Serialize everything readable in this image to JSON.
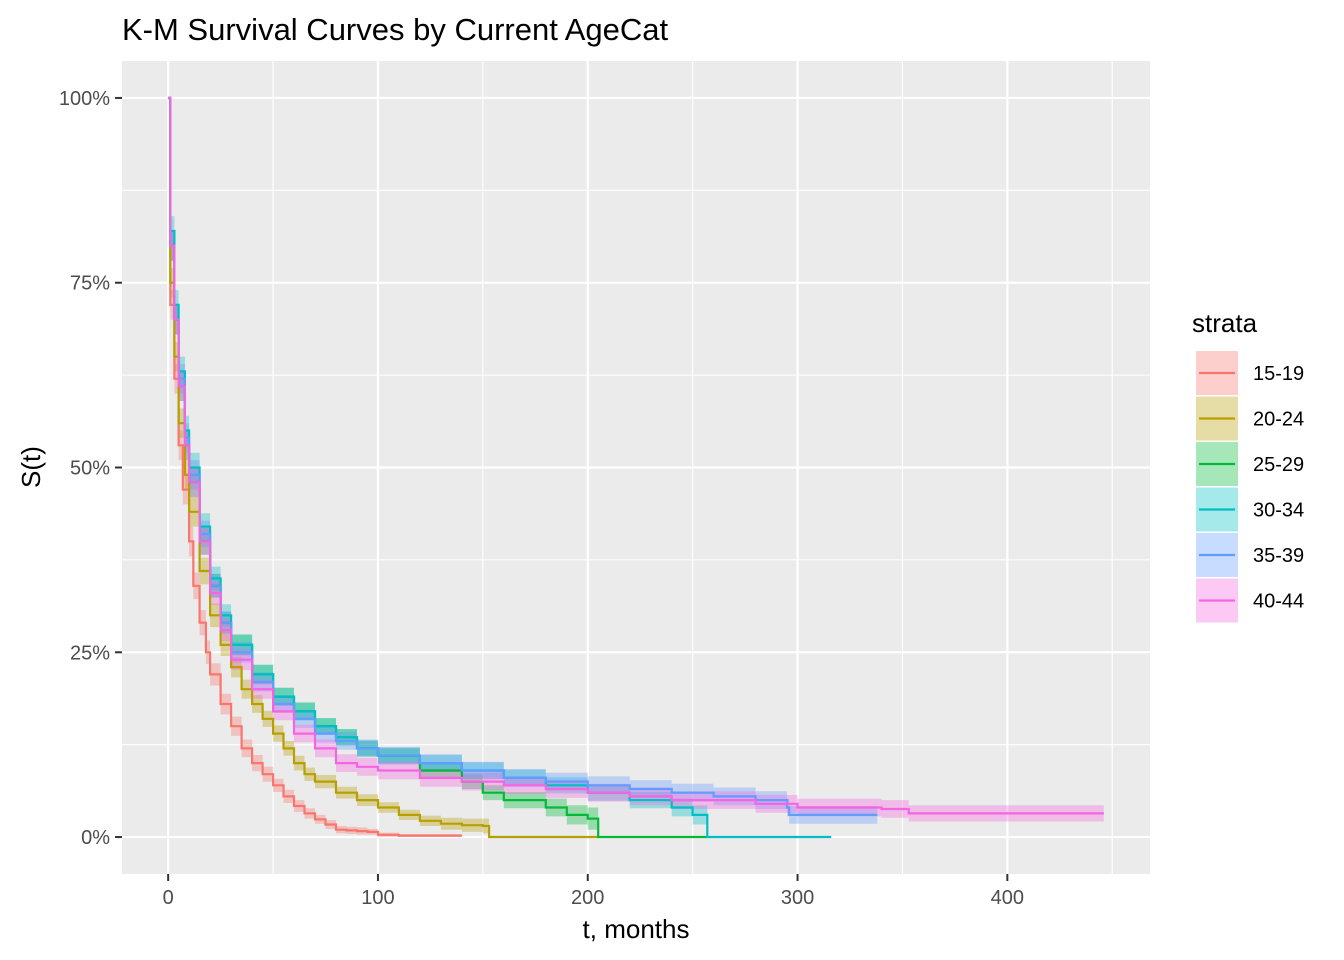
{
  "chart_data": {
    "type": "line",
    "title": "K-M Survival Curves by Current AgeCat",
    "xlabel": "t, months",
    "ylabel": "S(t)",
    "xlim": [
      -22,
      468
    ],
    "ylim": [
      -0.05,
      1.05
    ],
    "x_ticks": [
      0,
      100,
      200,
      300,
      400
    ],
    "x_tick_labels": [
      "0",
      "100",
      "200",
      "300",
      "400"
    ],
    "y_ticks": [
      0,
      0.25,
      0.5,
      0.75,
      1.0
    ],
    "y_tick_labels": [
      "0%",
      "25%",
      "50%",
      "75%",
      "100%"
    ],
    "grid": true,
    "legend_title": "strata",
    "legend_position": "right",
    "series": [
      {
        "name": "15-19",
        "color": "#F8766D",
        "points": [
          [
            0,
            1.0
          ],
          [
            1,
            0.72
          ],
          [
            3,
            0.62
          ],
          [
            5,
            0.53
          ],
          [
            7,
            0.47
          ],
          [
            10,
            0.4
          ],
          [
            12,
            0.34
          ],
          [
            15,
            0.29
          ],
          [
            18,
            0.25
          ],
          [
            20,
            0.22
          ],
          [
            25,
            0.18
          ],
          [
            30,
            0.15
          ],
          [
            35,
            0.12
          ],
          [
            40,
            0.1
          ],
          [
            45,
            0.085
          ],
          [
            50,
            0.07
          ],
          [
            55,
            0.055
          ],
          [
            60,
            0.042
          ],
          [
            65,
            0.032
          ],
          [
            70,
            0.024
          ],
          [
            75,
            0.017
          ],
          [
            80,
            0.01
          ],
          [
            85,
            0.009
          ],
          [
            90,
            0.008
          ],
          [
            95,
            0.007
          ],
          [
            100,
            0.003
          ],
          [
            110,
            0.002
          ],
          [
            140,
            0.002
          ]
        ],
        "ci_width": [
          0,
          0.02,
          0.02,
          0.02,
          0.02,
          0.02,
          0.018,
          0.017,
          0.016,
          0.015,
          0.014,
          0.013,
          0.012,
          0.011,
          0.01,
          0.009,
          0.009,
          0.008,
          0.007,
          0.006,
          0.006,
          0.005,
          0.005,
          0.005,
          0.004,
          0.003,
          0.002,
          0.002
        ]
      },
      {
        "name": "20-24",
        "color": "#B79F00",
        "points": [
          [
            0,
            1.0
          ],
          [
            1,
            0.75
          ],
          [
            3,
            0.65
          ],
          [
            5,
            0.56
          ],
          [
            8,
            0.49
          ],
          [
            10,
            0.44
          ],
          [
            15,
            0.36
          ],
          [
            20,
            0.3
          ],
          [
            25,
            0.26
          ],
          [
            30,
            0.23
          ],
          [
            35,
            0.2
          ],
          [
            40,
            0.18
          ],
          [
            45,
            0.16
          ],
          [
            50,
            0.14
          ],
          [
            55,
            0.12
          ],
          [
            60,
            0.1
          ],
          [
            65,
            0.085
          ],
          [
            70,
            0.075
          ],
          [
            80,
            0.06
          ],
          [
            90,
            0.05
          ],
          [
            100,
            0.04
          ],
          [
            110,
            0.03
          ],
          [
            120,
            0.022
          ],
          [
            130,
            0.018
          ],
          [
            140,
            0.016
          ],
          [
            150,
            0.015
          ],
          [
            153,
            0.0
          ],
          [
            205,
            0.0
          ]
        ],
        "ci_width": [
          0,
          0.02,
          0.02,
          0.02,
          0.02,
          0.02,
          0.018,
          0.016,
          0.015,
          0.014,
          0.013,
          0.012,
          0.011,
          0.011,
          0.01,
          0.01,
          0.009,
          0.009,
          0.008,
          0.008,
          0.007,
          0.007,
          0.007,
          0.008,
          0.009,
          0.01,
          0,
          0
        ]
      },
      {
        "name": "25-29",
        "color": "#00BA38",
        "points": [
          [
            0,
            1.0
          ],
          [
            1,
            0.8
          ],
          [
            3,
            0.7
          ],
          [
            5,
            0.61
          ],
          [
            8,
            0.53
          ],
          [
            10,
            0.48
          ],
          [
            15,
            0.4
          ],
          [
            20,
            0.34
          ],
          [
            25,
            0.29
          ],
          [
            30,
            0.26
          ],
          [
            40,
            0.22
          ],
          [
            50,
            0.19
          ],
          [
            60,
            0.17
          ],
          [
            70,
            0.15
          ],
          [
            80,
            0.135
          ],
          [
            90,
            0.12
          ],
          [
            100,
            0.11
          ],
          [
            120,
            0.09
          ],
          [
            140,
            0.075
          ],
          [
            150,
            0.06
          ],
          [
            160,
            0.05
          ],
          [
            180,
            0.04
          ],
          [
            190,
            0.03
          ],
          [
            200,
            0.025
          ],
          [
            205,
            0.0
          ],
          [
            257,
            0.0
          ]
        ],
        "ci_width": [
          0,
          0.02,
          0.02,
          0.02,
          0.02,
          0.02,
          0.018,
          0.016,
          0.015,
          0.014,
          0.013,
          0.012,
          0.012,
          0.011,
          0.011,
          0.01,
          0.01,
          0.01,
          0.01,
          0.01,
          0.011,
          0.012,
          0.013,
          0.015,
          0,
          0
        ]
      },
      {
        "name": "30-34",
        "color": "#00BFC4",
        "points": [
          [
            0,
            1.0
          ],
          [
            1,
            0.82
          ],
          [
            3,
            0.72
          ],
          [
            5,
            0.63
          ],
          [
            8,
            0.55
          ],
          [
            10,
            0.5
          ],
          [
            15,
            0.42
          ],
          [
            20,
            0.35
          ],
          [
            25,
            0.3
          ],
          [
            30,
            0.26
          ],
          [
            40,
            0.22
          ],
          [
            50,
            0.19
          ],
          [
            60,
            0.17
          ],
          [
            70,
            0.15
          ],
          [
            80,
            0.135
          ],
          [
            90,
            0.12
          ],
          [
            100,
            0.11
          ],
          [
            120,
            0.1
          ],
          [
            140,
            0.09
          ],
          [
            160,
            0.08
          ],
          [
            180,
            0.07
          ],
          [
            200,
            0.06
          ],
          [
            220,
            0.05
          ],
          [
            240,
            0.04
          ],
          [
            250,
            0.03
          ],
          [
            257,
            0.0
          ],
          [
            316,
            0.0
          ]
        ],
        "ci_width": [
          0,
          0.02,
          0.02,
          0.02,
          0.02,
          0.02,
          0.018,
          0.016,
          0.015,
          0.014,
          0.013,
          0.012,
          0.012,
          0.011,
          0.011,
          0.011,
          0.011,
          0.011,
          0.011,
          0.011,
          0.011,
          0.011,
          0.011,
          0.012,
          0.013,
          0,
          0
        ]
      },
      {
        "name": "35-39",
        "color": "#619CFF",
        "points": [
          [
            0,
            1.0
          ],
          [
            1,
            0.8
          ],
          [
            3,
            0.7
          ],
          [
            5,
            0.62
          ],
          [
            8,
            0.54
          ],
          [
            10,
            0.49
          ],
          [
            15,
            0.41
          ],
          [
            20,
            0.34
          ],
          [
            25,
            0.29
          ],
          [
            30,
            0.25
          ],
          [
            40,
            0.21
          ],
          [
            50,
            0.18
          ],
          [
            60,
            0.16
          ],
          [
            70,
            0.14
          ],
          [
            80,
            0.13
          ],
          [
            90,
            0.12
          ],
          [
            100,
            0.11
          ],
          [
            120,
            0.1
          ],
          [
            140,
            0.09
          ],
          [
            160,
            0.08
          ],
          [
            180,
            0.075
          ],
          [
            200,
            0.07
          ],
          [
            220,
            0.065
          ],
          [
            240,
            0.06
          ],
          [
            260,
            0.055
          ],
          [
            280,
            0.05
          ],
          [
            295,
            0.04
          ],
          [
            296,
            0.03
          ],
          [
            338,
            0.03
          ]
        ],
        "ci_width": [
          0,
          0.02,
          0.02,
          0.02,
          0.02,
          0.02,
          0.018,
          0.016,
          0.015,
          0.014,
          0.013,
          0.012,
          0.012,
          0.012,
          0.012,
          0.012,
          0.012,
          0.012,
          0.012,
          0.012,
          0.012,
          0.012,
          0.012,
          0.012,
          0.012,
          0.012,
          0.012,
          0.012,
          0.012
        ]
      },
      {
        "name": "40-44",
        "color": "#F564E3",
        "points": [
          [
            0,
            1.0
          ],
          [
            1,
            0.8
          ],
          [
            3,
            0.7
          ],
          [
            5,
            0.61
          ],
          [
            8,
            0.53
          ],
          [
            10,
            0.48
          ],
          [
            15,
            0.4
          ],
          [
            20,
            0.33
          ],
          [
            25,
            0.28
          ],
          [
            30,
            0.24
          ],
          [
            40,
            0.2
          ],
          [
            50,
            0.17
          ],
          [
            60,
            0.14
          ],
          [
            70,
            0.12
          ],
          [
            80,
            0.1
          ],
          [
            90,
            0.095
          ],
          [
            100,
            0.09
          ],
          [
            120,
            0.08
          ],
          [
            140,
            0.075
          ],
          [
            160,
            0.07
          ],
          [
            180,
            0.065
          ],
          [
            200,
            0.06
          ],
          [
            220,
            0.055
          ],
          [
            240,
            0.05
          ],
          [
            260,
            0.05
          ],
          [
            280,
            0.045
          ],
          [
            300,
            0.04
          ],
          [
            320,
            0.04
          ],
          [
            340,
            0.038
          ],
          [
            353,
            0.032
          ],
          [
            446,
            0.032
          ]
        ],
        "ci_width": [
          0,
          0.02,
          0.02,
          0.02,
          0.02,
          0.02,
          0.018,
          0.016,
          0.015,
          0.014,
          0.013,
          0.012,
          0.012,
          0.012,
          0.012,
          0.012,
          0.012,
          0.012,
          0.012,
          0.012,
          0.012,
          0.012,
          0.012,
          0.012,
          0.012,
          0.012,
          0.012,
          0.012,
          0.012,
          0.011,
          0.011
        ]
      }
    ]
  }
}
